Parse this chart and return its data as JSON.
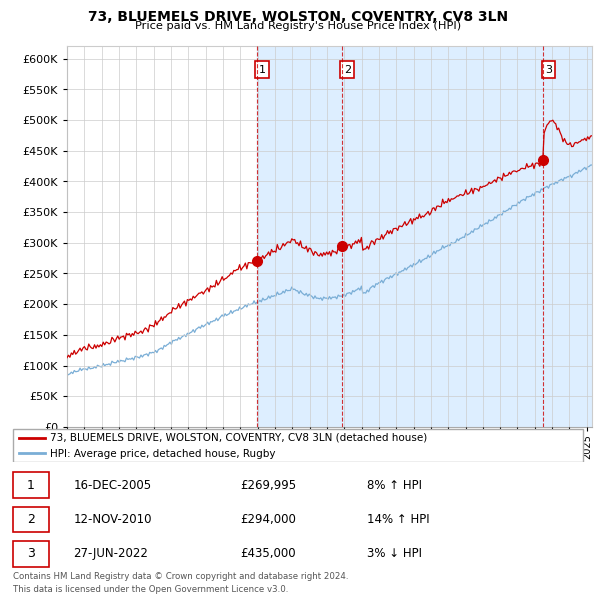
{
  "title": "73, BLUEMELS DRIVE, WOLSTON, COVENTRY, CV8 3LN",
  "subtitle": "Price paid vs. HM Land Registry's House Price Index (HPI)",
  "ylim": [
    0,
    620000
  ],
  "yticks": [
    0,
    50000,
    100000,
    150000,
    200000,
    250000,
    300000,
    350000,
    400000,
    450000,
    500000,
    550000,
    600000
  ],
  "sale_color": "#cc0000",
  "hpi_color": "#7aaed6",
  "shade_color": "#ddeeff",
  "sale_dates": [
    2005.96,
    2010.87,
    2022.49
  ],
  "sale_prices": [
    269995,
    294000,
    435000
  ],
  "sale_labels": [
    "1",
    "2",
    "3"
  ],
  "legend_sale_label": "73, BLUEMELS DRIVE, WOLSTON, COVENTRY, CV8 3LN (detached house)",
  "legend_hpi_label": "HPI: Average price, detached house, Rugby",
  "table_rows": [
    {
      "num": "1",
      "date": "16-DEC-2005",
      "price": "£269,995",
      "pct": "8%",
      "dir": "↑",
      "ref": "HPI"
    },
    {
      "num": "2",
      "date": "12-NOV-2010",
      "price": "£294,000",
      "pct": "14%",
      "dir": "↑",
      "ref": "HPI"
    },
    {
      "num": "3",
      "date": "27-JUN-2022",
      "price": "£435,000",
      "pct": "3%",
      "dir": "↓",
      "ref": "HPI"
    }
  ],
  "footnote1": "Contains HM Land Registry data © Crown copyright and database right 2024.",
  "footnote2": "This data is licensed under the Open Government Licence v3.0.",
  "background_color": "#ffffff",
  "grid_color": "#cccccc",
  "vline_color": "#cc0000"
}
